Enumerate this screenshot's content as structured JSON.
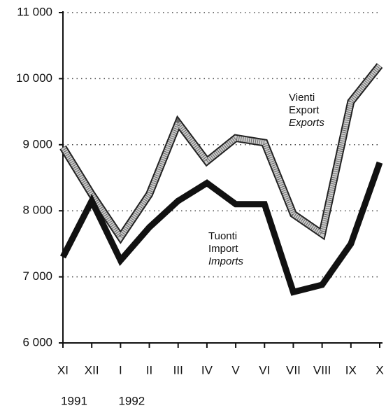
{
  "chart_data": {
    "type": "line",
    "categories": [
      "XI",
      "XII",
      "I",
      "II",
      "III",
      "IV",
      "V",
      "VI",
      "VII",
      "VIII",
      "IX",
      "X"
    ],
    "year_labels": [
      "1991",
      null,
      "1992",
      null,
      null,
      null,
      null,
      null,
      null,
      null,
      null,
      null
    ],
    "series": [
      {
        "label_lines": [
          "Vienti",
          "Export",
          "Exports"
        ],
        "color": "#cccccc",
        "values": [
          8960,
          8250,
          7600,
          8250,
          9330,
          8750,
          9100,
          9030,
          7950,
          7650,
          9650,
          10200
        ]
      },
      {
        "label_lines": [
          "Tuonti",
          "Import",
          "Imports"
        ],
        "color": "#111111",
        "values": [
          7300,
          8150,
          7250,
          7750,
          8150,
          8420,
          8100,
          8100,
          6770,
          6880,
          7500,
          8730
        ]
      }
    ],
    "ylim": [
      6000,
      11000
    ],
    "yticks": [
      {
        "value": 6000,
        "label": "6 000"
      },
      {
        "value": 7000,
        "label": "7 000"
      },
      {
        "value": 8000,
        "label": "8 000"
      },
      {
        "value": 9000,
        "label": "9 000"
      },
      {
        "value": 10000,
        "label": "10 000"
      },
      {
        "value": 11000,
        "label": "11 000"
      }
    ],
    "grid": true
  }
}
